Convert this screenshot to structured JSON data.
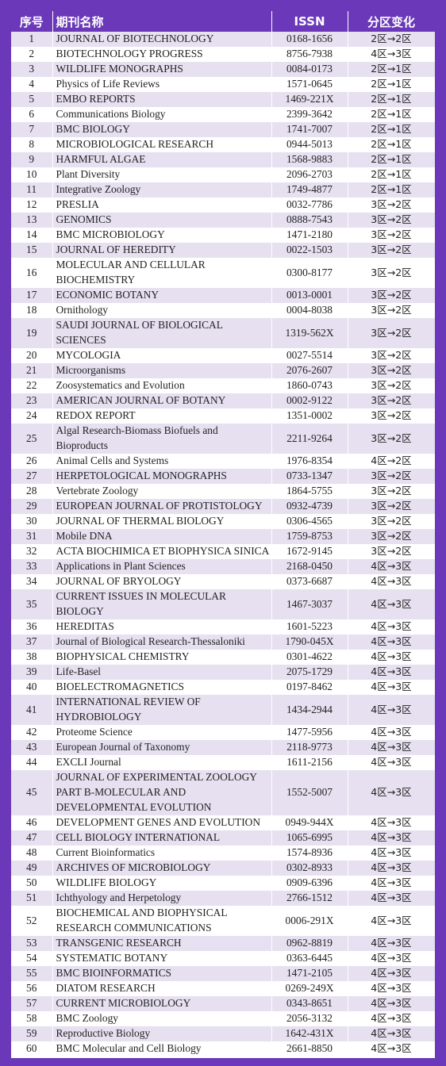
{
  "header": {
    "no": "序号",
    "name": "期刊名称",
    "issn": "ISSN",
    "change": "分区变化"
  },
  "rows": [
    {
      "no": "1",
      "name": "JOURNAL OF BIOTECHNOLOGY",
      "issn": "0168-1656",
      "change": "2区→2区"
    },
    {
      "no": "2",
      "name": "BIOTECHNOLOGY PROGRESS",
      "issn": "8756-7938",
      "change": "4区→3区"
    },
    {
      "no": "3",
      "name": "WILDLIFE MONOGRAPHS",
      "issn": "0084-0173",
      "change": "2区→1区"
    },
    {
      "no": "4",
      "name": "Physics of Life Reviews",
      "issn": "1571-0645",
      "change": "2区→1区"
    },
    {
      "no": "5",
      "name": "EMBO REPORTS",
      "issn": "1469-221X",
      "change": "2区→1区"
    },
    {
      "no": "6",
      "name": "Communications Biology",
      "issn": "2399-3642",
      "change": "2区→1区"
    },
    {
      "no": "7",
      "name": "BMC BIOLOGY",
      "issn": "1741-7007",
      "change": "2区→1区"
    },
    {
      "no": "8",
      "name": "MICROBIOLOGICAL RESEARCH",
      "issn": "0944-5013",
      "change": "2区→1区"
    },
    {
      "no": "9",
      "name": "HARMFUL ALGAE",
      "issn": "1568-9883",
      "change": "2区→1区"
    },
    {
      "no": "10",
      "name": "Plant Diversity",
      "issn": "2096-2703",
      "change": "2区→1区"
    },
    {
      "no": "11",
      "name": "Integrative Zoology",
      "issn": "1749-4877",
      "change": "2区→1区"
    },
    {
      "no": "12",
      "name": "PRESLIA",
      "issn": "0032-7786",
      "change": "3区→2区"
    },
    {
      "no": "13",
      "name": "GENOMICS",
      "issn": "0888-7543",
      "change": "3区→2区"
    },
    {
      "no": "14",
      "name": "BMC MICROBIOLOGY",
      "issn": "1471-2180",
      "change": "3区→2区"
    },
    {
      "no": "15",
      "name": "JOURNAL OF HEREDITY",
      "issn": "0022-1503",
      "change": "3区→2区"
    },
    {
      "no": "16",
      "name": "MOLECULAR AND CELLULAR BIOCHEMISTRY",
      "issn": "0300-8177",
      "change": "3区→2区",
      "lines": 2
    },
    {
      "no": "17",
      "name": "ECONOMIC BOTANY",
      "issn": "0013-0001",
      "change": "3区→2区"
    },
    {
      "no": "18",
      "name": "Ornithology",
      "issn": "0004-8038",
      "change": "3区→2区"
    },
    {
      "no": "19",
      "name": "SAUDI JOURNAL OF BIOLOGICAL SCIENCES",
      "issn": "1319-562X",
      "change": "3区→2区",
      "lines": 2
    },
    {
      "no": "20",
      "name": "MYCOLOGIA",
      "issn": "0027-5514",
      "change": "3区→2区"
    },
    {
      "no": "21",
      "name": "Microorganisms",
      "issn": "2076-2607",
      "change": "3区→2区"
    },
    {
      "no": "22",
      "name": "Zoosystematics and Evolution",
      "issn": "1860-0743",
      "change": "3区→2区"
    },
    {
      "no": "23",
      "name": "AMERICAN JOURNAL OF BOTANY",
      "issn": "0002-9122",
      "change": "3区→2区"
    },
    {
      "no": "24",
      "name": "REDOX REPORT",
      "issn": "1351-0002",
      "change": "3区→2区"
    },
    {
      "no": "25",
      "name": "Algal Research-Biomass Biofuels and Bioproducts",
      "issn": "2211-9264",
      "change": "3区→2区",
      "lines": 2
    },
    {
      "no": "26",
      "name": "Animal Cells and Systems",
      "issn": "1976-8354",
      "change": "4区→2区"
    },
    {
      "no": "27",
      "name": "HERPETOLOGICAL MONOGRAPHS",
      "issn": "0733-1347",
      "change": "3区→2区"
    },
    {
      "no": "28",
      "name": "Vertebrate Zoology",
      "issn": "1864-5755",
      "change": "3区→2区"
    },
    {
      "no": "29",
      "name": "EUROPEAN JOURNAL OF PROTISTOLOGY",
      "issn": "0932-4739",
      "change": "3区→2区"
    },
    {
      "no": "30",
      "name": "JOURNAL OF THERMAL BIOLOGY",
      "issn": "0306-4565",
      "change": "3区→2区"
    },
    {
      "no": "31",
      "name": "Mobile DNA",
      "issn": "1759-8753",
      "change": "3区→2区"
    },
    {
      "no": "32",
      "name": "ACTA BIOCHIMICA ET BIOPHYSICA SINICA",
      "issn": "1672-9145",
      "change": "3区→2区"
    },
    {
      "no": "33",
      "name": "Applications in Plant Sciences",
      "issn": "2168-0450",
      "change": "4区→3区"
    },
    {
      "no": "34",
      "name": "JOURNAL OF BRYOLOGY",
      "issn": "0373-6687",
      "change": "4区→3区"
    },
    {
      "no": "35",
      "name": "CURRENT ISSUES IN MOLECULAR BIOLOGY",
      "issn": "1467-3037",
      "change": "4区→3区",
      "lines": 2
    },
    {
      "no": "36",
      "name": "HEREDITAS",
      "issn": "1601-5223",
      "change": "4区→3区"
    },
    {
      "no": "37",
      "name": "Journal of Biological Research-Thessaloniki",
      "issn": "1790-045X",
      "change": "4区→3区"
    },
    {
      "no": "38",
      "name": "BIOPHYSICAL CHEMISTRY",
      "issn": "0301-4622",
      "change": "4区→3区"
    },
    {
      "no": "39",
      "name": "Life-Basel",
      "issn": "2075-1729",
      "change": "4区→3区"
    },
    {
      "no": "40",
      "name": "BIOELECTROMAGNETICS",
      "issn": "0197-8462",
      "change": "4区→3区"
    },
    {
      "no": "41",
      "name": "INTERNATIONAL REVIEW OF HYDROBIOLOGY",
      "issn": "1434-2944",
      "change": "4区→3区",
      "lines": 2
    },
    {
      "no": "42",
      "name": "Proteome Science",
      "issn": "1477-5956",
      "change": "4区→3区"
    },
    {
      "no": "43",
      "name": "European Journal of Taxonomy",
      "issn": "2118-9773",
      "change": "4区→3区"
    },
    {
      "no": "44",
      "name": "EXCLI Journal",
      "issn": "1611-2156",
      "change": "4区→3区"
    },
    {
      "no": "45",
      "name": "JOURNAL OF EXPERIMENTAL ZOOLOGY PART B-MOLECULAR AND DEVELOPMENTAL EVOLUTION",
      "issn": "1552-5007",
      "change": "4区→3区",
      "lines": 3
    },
    {
      "no": "46",
      "name": "DEVELOPMENT GENES AND EVOLUTION",
      "issn": "0949-944X",
      "change": "4区→3区"
    },
    {
      "no": "47",
      "name": "CELL BIOLOGY INTERNATIONAL",
      "issn": "1065-6995",
      "change": "4区→3区"
    },
    {
      "no": "48",
      "name": "Current Bioinformatics",
      "issn": "1574-8936",
      "change": "4区→3区"
    },
    {
      "no": "49",
      "name": "ARCHIVES OF MICROBIOLOGY",
      "issn": "0302-8933",
      "change": "4区→3区"
    },
    {
      "no": "50",
      "name": "WILDLIFE BIOLOGY",
      "issn": "0909-6396",
      "change": "4区→3区"
    },
    {
      "no": "51",
      "name": "Ichthyology and Herpetology",
      "issn": "2766-1512",
      "change": "4区→3区"
    },
    {
      "no": "52",
      "name": "BIOCHEMICAL AND BIOPHYSICAL RESEARCH COMMUNICATIONS",
      "issn": "0006-291X",
      "change": "4区→3区",
      "lines": 2
    },
    {
      "no": "53",
      "name": "TRANSGENIC RESEARCH",
      "issn": "0962-8819",
      "change": "4区→3区"
    },
    {
      "no": "54",
      "name": "SYSTEMATIC BOTANY",
      "issn": "0363-6445",
      "change": "4区→3区"
    },
    {
      "no": "55",
      "name": "BMC BIOINFORMATICS",
      "issn": "1471-2105",
      "change": "4区→3区"
    },
    {
      "no": "56",
      "name": "DIATOM RESEARCH",
      "issn": "0269-249X",
      "change": "4区→3区"
    },
    {
      "no": "57",
      "name": "CURRENT MICROBIOLOGY",
      "issn": "0343-8651",
      "change": "4区→3区"
    },
    {
      "no": "58",
      "name": "BMC Zoology",
      "issn": "2056-3132",
      "change": "4区→3区"
    },
    {
      "no": "59",
      "name": "Reproductive Biology",
      "issn": "1642-431X",
      "change": "4区→3区"
    },
    {
      "no": "60",
      "name": "BMC Molecular and Cell Biology",
      "issn": "2661-8850",
      "change": "4区→3区"
    }
  ],
  "colors": {
    "frame": "#6a38b8",
    "stripe": "#e6e0f0",
    "header_text": "#ffffff"
  }
}
